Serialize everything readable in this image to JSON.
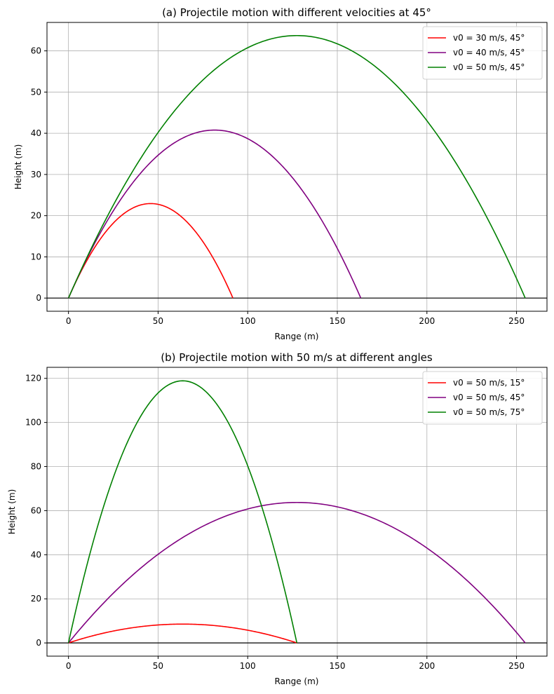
{
  "chart_data": [
    {
      "type": "line",
      "title": "(a) Projectile motion with different velocities at 45°",
      "xlabel": "Range (m)",
      "ylabel": "Height (m)",
      "xlim": [
        -12,
        267
      ],
      "ylim": [
        -3.2,
        66.9
      ],
      "xticks": [
        0,
        50,
        100,
        150,
        200,
        250
      ],
      "yticks": [
        0,
        10,
        20,
        30,
        40,
        50,
        60
      ],
      "grid": true,
      "legend": "top-right",
      "series": [
        {
          "name": "v0 = 30 m/s, 45°",
          "v0": 30,
          "angle_deg": 45,
          "color": "#ff0000"
        },
        {
          "name": "v0 = 40 m/s, 45°",
          "v0": 40,
          "angle_deg": 45,
          "color": "#800080"
        },
        {
          "name": "v0 = 50 m/s, 45°",
          "v0": 50,
          "angle_deg": 45,
          "color": "#008000"
        }
      ]
    },
    {
      "type": "line",
      "title": "(b) Projectile motion with 50 m/s at different angles",
      "xlabel": "Range (m)",
      "ylabel": "Height (m)",
      "xlim": [
        -12,
        267
      ],
      "ylim": [
        -6.0,
        125.0
      ],
      "xticks": [
        0,
        50,
        100,
        150,
        200,
        250
      ],
      "yticks": [
        0,
        20,
        40,
        60,
        80,
        100,
        120
      ],
      "grid": true,
      "legend": "top-right",
      "series": [
        {
          "name": "v0 = 50 m/s, 15°",
          "v0": 50,
          "angle_deg": 15,
          "color": "#ff0000"
        },
        {
          "name": "v0 = 50 m/s, 45°",
          "v0": 50,
          "angle_deg": 45,
          "color": "#800080"
        },
        {
          "name": "v0 = 50 m/s, 75°",
          "v0": 50,
          "angle_deg": 75,
          "color": "#008000"
        }
      ]
    }
  ]
}
